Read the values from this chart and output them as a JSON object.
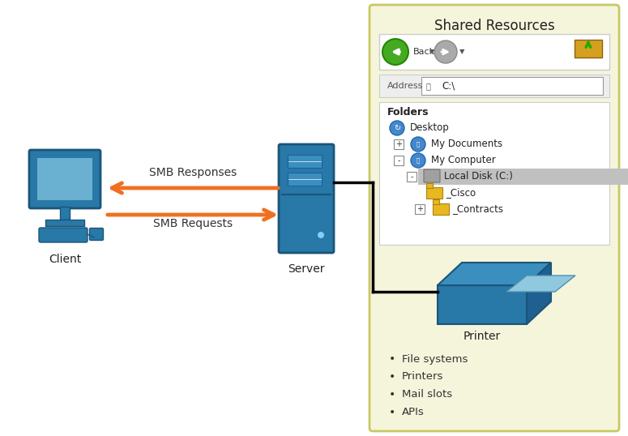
{
  "bg_color": "#ffffff",
  "panel_bg": "#f5f5dc",
  "panel_border": "#c8c864",
  "title_text": "Shared Resources",
  "client_label": "Client",
  "server_label": "Server",
  "printer_label": "Printer",
  "response_label": "SMB Responses",
  "request_label": "SMB Requests",
  "arrow_color": "#f07020",
  "blue_dark": "#2878a8",
  "blue_mid": "#3a8fbe",
  "blue_light": "#6ab0d0",
  "folder_color": "#e8b820",
  "bullet_items": [
    "File systems",
    "Printers",
    "Mail slots",
    "APIs"
  ],
  "address_text": "C:\\",
  "nav_gray": "#d4d0c8",
  "green_btn": "#44aa22",
  "gray_btn": "#aaaaaa"
}
